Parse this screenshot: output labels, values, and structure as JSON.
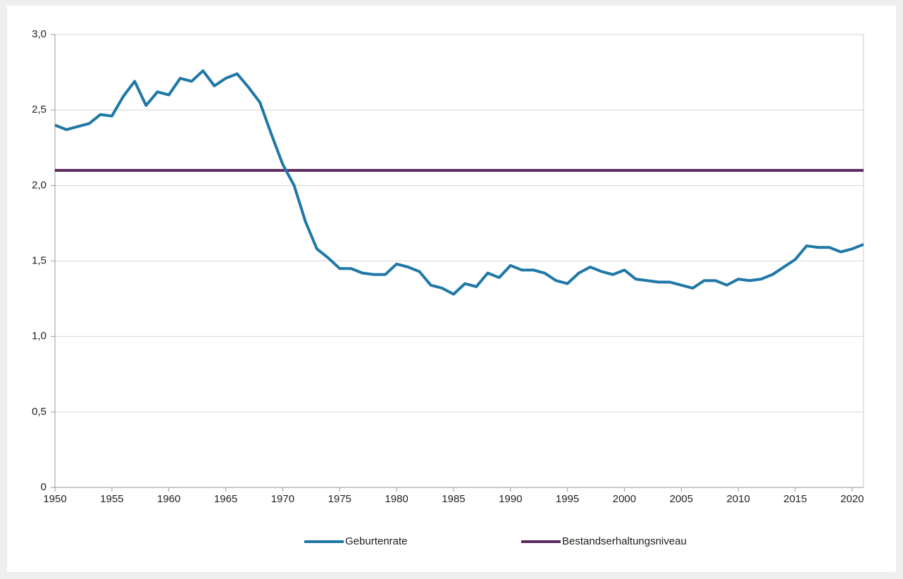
{
  "chart_data": {
    "type": "line",
    "x": [
      1950,
      1951,
      1952,
      1953,
      1954,
      1955,
      1956,
      1957,
      1958,
      1959,
      1960,
      1961,
      1962,
      1963,
      1964,
      1965,
      1966,
      1967,
      1968,
      1969,
      1970,
      1971,
      1972,
      1973,
      1974,
      1975,
      1976,
      1977,
      1978,
      1979,
      1980,
      1981,
      1982,
      1983,
      1984,
      1985,
      1986,
      1987,
      1988,
      1989,
      1990,
      1991,
      1992,
      1993,
      1994,
      1995,
      1996,
      1997,
      1998,
      1999,
      2000,
      2001,
      2002,
      2003,
      2004,
      2005,
      2006,
      2007,
      2008,
      2009,
      2010,
      2011,
      2012,
      2013,
      2014,
      2015,
      2016,
      2017,
      2018,
      2019,
      2020,
      2021
    ],
    "series": [
      {
        "name": "Geburtenrate",
        "color": "#1f78a6",
        "values": [
          2.4,
          2.37,
          2.39,
          2.41,
          2.47,
          2.46,
          2.59,
          2.69,
          2.53,
          2.62,
          2.6,
          2.71,
          2.69,
          2.76,
          2.66,
          2.71,
          2.74,
          2.65,
          2.55,
          2.34,
          2.14,
          2.0,
          1.76,
          1.58,
          1.52,
          1.45,
          1.45,
          1.42,
          1.41,
          1.41,
          1.48,
          1.46,
          1.43,
          1.34,
          1.32,
          1.28,
          1.35,
          1.33,
          1.42,
          1.39,
          1.47,
          1.44,
          1.44,
          1.42,
          1.37,
          1.35,
          1.42,
          1.46,
          1.43,
          1.41,
          1.44,
          1.38,
          1.37,
          1.36,
          1.36,
          1.34,
          1.32,
          1.37,
          1.37,
          1.34,
          1.38,
          1.37,
          1.38,
          1.41,
          1.46,
          1.51,
          1.6,
          1.59,
          1.59,
          1.56,
          1.58,
          1.61
        ]
      },
      {
        "name": "Bestandserhaltungsniveau",
        "color": "#5b2a5e",
        "values": [
          2.1,
          2.1,
          2.1,
          2.1,
          2.1,
          2.1,
          2.1,
          2.1,
          2.1,
          2.1,
          2.1,
          2.1,
          2.1,
          2.1,
          2.1,
          2.1,
          2.1,
          2.1,
          2.1,
          2.1,
          2.1,
          2.1,
          2.1,
          2.1,
          2.1,
          2.1,
          2.1,
          2.1,
          2.1,
          2.1,
          2.1,
          2.1,
          2.1,
          2.1,
          2.1,
          2.1,
          2.1,
          2.1,
          2.1,
          2.1,
          2.1,
          2.1,
          2.1,
          2.1,
          2.1,
          2.1,
          2.1,
          2.1,
          2.1,
          2.1,
          2.1,
          2.1,
          2.1,
          2.1,
          2.1,
          2.1,
          2.1,
          2.1,
          2.1,
          2.1,
          2.1,
          2.1,
          2.1,
          2.1,
          2.1,
          2.1,
          2.1,
          2.1,
          2.1,
          2.1,
          2.1,
          2.1
        ]
      }
    ],
    "xlim": [
      1950,
      2021
    ],
    "xticks": [
      1950,
      1955,
      1960,
      1965,
      1970,
      1975,
      1980,
      1985,
      1990,
      1995,
      2000,
      2005,
      2010,
      2015,
      2020
    ],
    "ylim": [
      0,
      3
    ],
    "yticks": [
      0,
      {
        "value": 0.5,
        "label": "0,5"
      },
      {
        "value": 1,
        "label": "1,0"
      },
      {
        "value": 1.5,
        "label": "1,5"
      },
      {
        "value": 2,
        "label": "2,0"
      },
      {
        "value": 2.5,
        "label": "2,5"
      },
      {
        "value": 3,
        "label": "3,0"
      }
    ],
    "grid": true,
    "legend": "bottom"
  }
}
